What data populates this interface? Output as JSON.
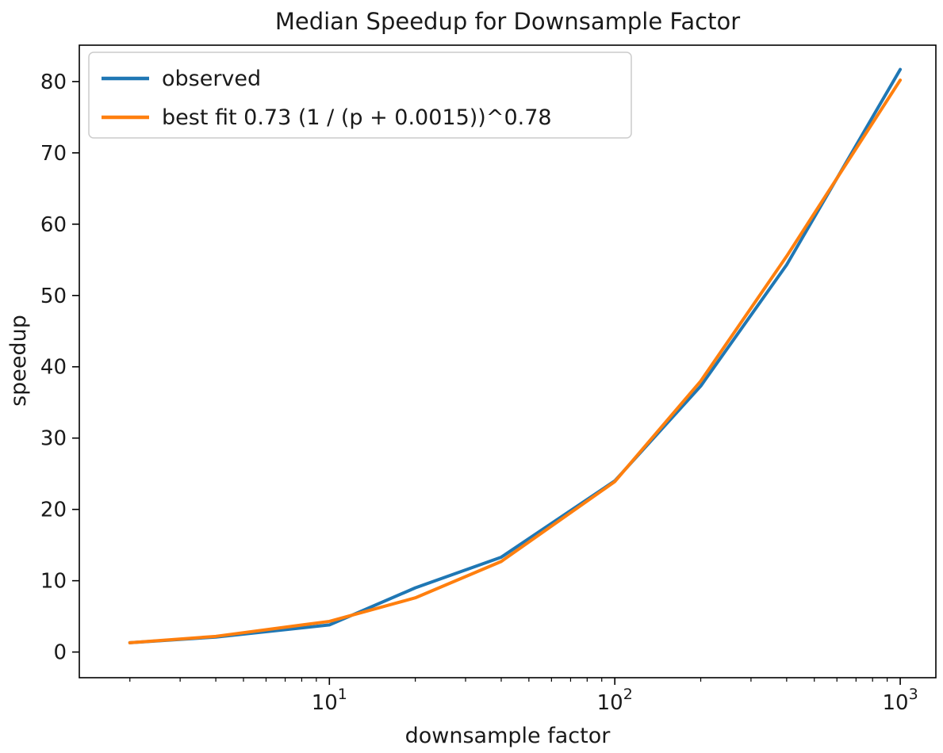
{
  "chart_data": {
    "type": "line",
    "title": "Median Speedup for Downsample Factor",
    "xlabel": "downsample factor",
    "ylabel": "speedup",
    "x_scale": "log",
    "grid": false,
    "legend_position": "upper left",
    "xlim": [
      1.33,
      1333
    ],
    "ylim": [
      -3.6,
      85.1
    ],
    "x": [
      2,
      4,
      10,
      20,
      40,
      100,
      200,
      400,
      1000
    ],
    "series": [
      {
        "name": "observed",
        "color": "#1f77b4",
        "values": [
          1.3,
          2.1,
          3.8,
          9.0,
          13.3,
          24.0,
          37.3,
          54.3,
          81.7
        ]
      },
      {
        "name": "best fit 0.73 (1 / (p + 0.0015))^0.78",
        "color": "#ff7f0e",
        "values": [
          1.3,
          2.2,
          4.3,
          7.6,
          12.7,
          23.9,
          38.0,
          55.5,
          80.2
        ]
      }
    ],
    "x_ticks": [
      {
        "value": 10,
        "base": "10",
        "exp": "1"
      },
      {
        "value": 100,
        "base": "10",
        "exp": "2"
      },
      {
        "value": 1000,
        "base": "10",
        "exp": "3"
      }
    ],
    "y_ticks": [
      0,
      10,
      20,
      30,
      40,
      50,
      60,
      70,
      80
    ],
    "colors": {
      "spine": "#000000",
      "text": "#1a1a1a",
      "legend_border": "#cccccc",
      "legend_fill": "rgba(255,255,255,0.85)"
    }
  }
}
